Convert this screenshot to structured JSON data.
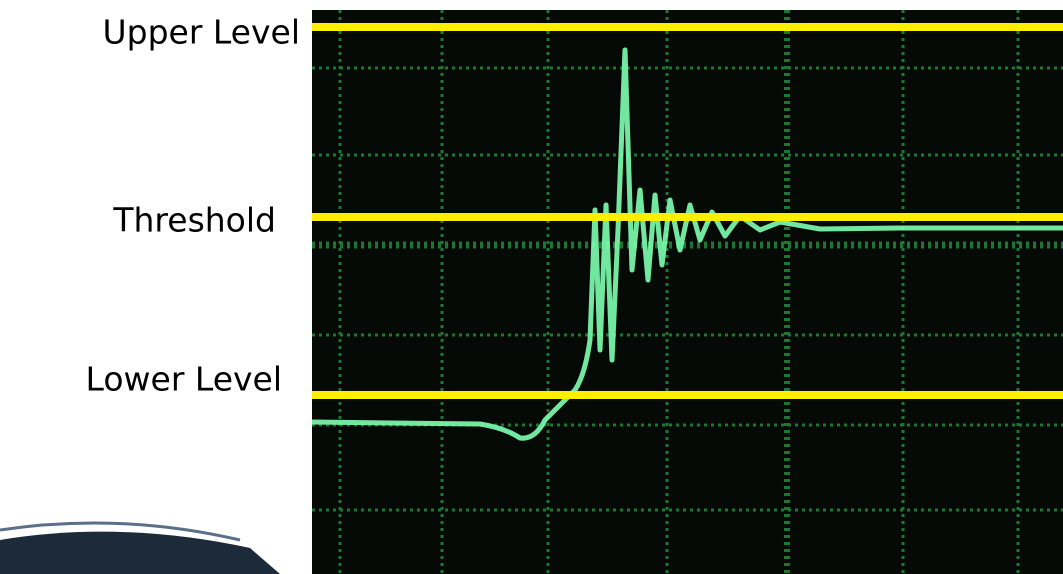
{
  "labels": {
    "upper": "Upper Level",
    "threshold": "Threshold",
    "lower": "Lower Level"
  }
}
